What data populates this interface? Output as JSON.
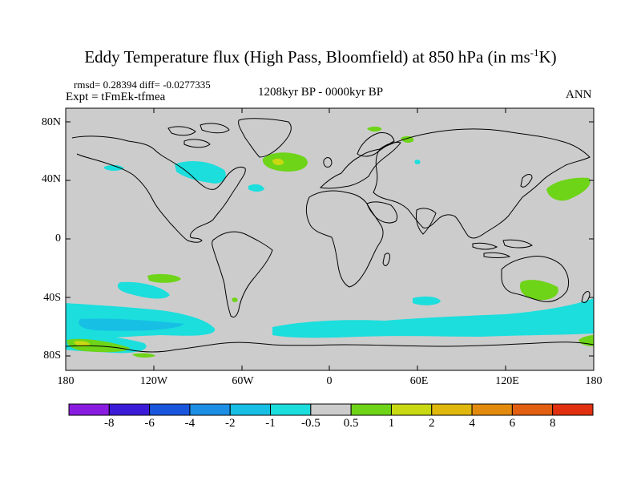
{
  "title": {
    "main": "Eddy Temperature flux (High Pass, Bloomfield) at 850 hPa (in ms",
    "sup": "-1",
    "tail": "K)"
  },
  "stats": "rmsd= 0.28394  diff= -0.0277335",
  "expt": "Expt = tFmEk-tfmea",
  "period": "1208kyr BP - 0000kyr BP",
  "season": "ANN",
  "axes": {
    "y_ticks": [
      "80N",
      "40N",
      "0",
      "40S",
      "80S"
    ],
    "x_ticks": [
      "180",
      "120W",
      "60W",
      "0",
      "60E",
      "120E",
      "180"
    ]
  },
  "colorbar": {
    "colors": [
      "#8a1be0",
      "#3c1bd8",
      "#1a55de",
      "#1c8ee4",
      "#17bfe4",
      "#1bdedd",
      "#cccccc",
      "#6ed418",
      "#c8d812",
      "#e0b70c",
      "#e28a0e",
      "#e25e10",
      "#e03010"
    ],
    "labels": [
      "-8",
      "-6",
      "-4",
      "-2",
      "-1",
      "-0.5",
      "0.5",
      "1",
      "2",
      "4",
      "6",
      "8"
    ]
  },
  "chart_data": {
    "type": "filled-contour-map",
    "title": "Eddy Temperature flux (High Pass, Bloomfield) at 850 hPa (in ms-1K)",
    "variable": "Eddy temperature flux difference",
    "units": "ms-1K",
    "level": "850 hPa",
    "lon_range": [
      -180,
      180
    ],
    "lat_range": [
      -90,
      90
    ],
    "contour_levels": [
      -8,
      -6,
      -4,
      -2,
      -1,
      -0.5,
      0.5,
      1,
      2,
      4,
      6,
      8
    ],
    "rmsd": 0.28394,
    "diff": -0.0277335,
    "regions": [
      {
        "name": "Great Lakes / NE North America",
        "sign": "negative",
        "range": "-1 to -0.5"
      },
      {
        "name": "Southern Ocean circumpolar band",
        "sign": "negative",
        "range": "-1 to -0.5"
      },
      {
        "name": "Southeast Pacific",
        "sign": "negative",
        "range": "-0.5"
      },
      {
        "name": "North Atlantic south of Greenland",
        "sign": "positive",
        "range": "0.5 to 1"
      },
      {
        "name": "Northwest Pacific",
        "sign": "positive",
        "range": "0.5 to 1"
      },
      {
        "name": "Southern Australia",
        "sign": "positive",
        "range": "0.5 to 1"
      },
      {
        "name": "Ross Sea coast",
        "sign": "positive",
        "range": "0.5 to 1"
      }
    ]
  }
}
